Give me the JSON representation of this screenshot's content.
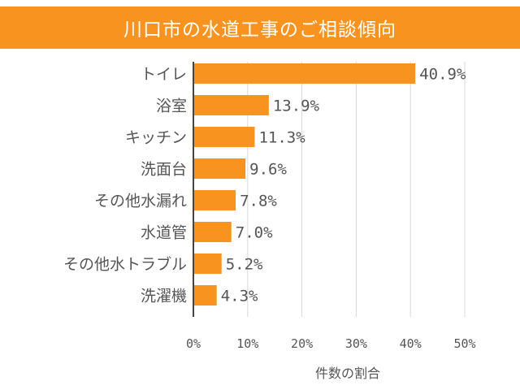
{
  "chart_data": {
    "type": "bar",
    "orientation": "horizontal",
    "title": "川口市の水道工事のご相談傾向",
    "categories": [
      "トイレ",
      "浴室",
      "キッチン",
      "洗面台",
      "その他水漏れ",
      "水道管",
      "その他水トラブル",
      "洗濯機"
    ],
    "values": [
      40.9,
      13.9,
      11.3,
      9.6,
      7.8,
      7.0,
      5.2,
      4.3
    ],
    "value_labels": [
      "40.9%",
      "13.9%",
      "11.3%",
      "9.6%",
      "7.8%",
      "7.0%",
      "5.2%",
      "4.3%"
    ],
    "xlabel": "件数の割合",
    "ylabel": "",
    "xlim": [
      0,
      50
    ],
    "xticks": [
      0,
      10,
      20,
      30,
      40,
      50
    ],
    "xtick_labels": [
      "0%",
      "10%",
      "20%",
      "30%",
      "40%",
      "50%"
    ],
    "grid": "vertical",
    "bar_color": "#f7931e",
    "title_bg_color": "#f7931e"
  }
}
